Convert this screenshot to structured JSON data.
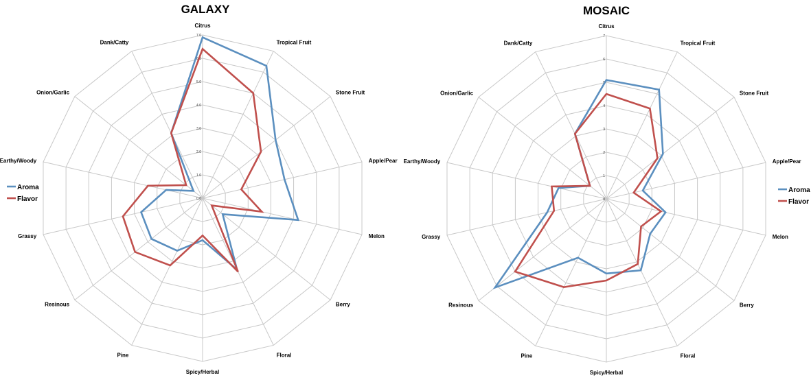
{
  "chart_data": [
    {
      "type": "radar",
      "title": "GALAXY",
      "categories": [
        "Citrus",
        "Tropical Fruit",
        "Stone Fruit",
        "Apple/Pear",
        "Melon",
        "Berry",
        "Floral",
        "Spicy/Herbal",
        "Pine",
        "Resinous",
        "Grassy",
        "Earthy/Woody",
        "Onion/Garlic",
        "Dank/Catty"
      ],
      "r_range": [
        0,
        7
      ],
      "tick_labels": [
        "0.0",
        "1.0",
        "2.0",
        "3.0",
        "4.0",
        "5.0",
        "6.0",
        "7.0"
      ],
      "series": [
        {
          "name": "Aroma",
          "color": "#5b8fbf",
          "values": [
            6.9,
            6.3,
            4.0,
            3.6,
            4.2,
            1.1,
            3.4,
            1.8,
            2.5,
            2.8,
            2.7,
            1.6,
            0.5,
            3.1
          ]
        },
        {
          "name": "Flavor",
          "color": "#c0504d",
          "values": [
            6.4,
            5.0,
            3.2,
            1.7,
            2.6,
            0.5,
            3.5,
            1.6,
            3.2,
            3.7,
            3.5,
            2.4,
            0.9,
            3.1
          ]
        }
      ],
      "legend": [
        "Aroma",
        "Flavor"
      ],
      "legend_position": "left"
    },
    {
      "type": "radar",
      "title": "MOSAIC",
      "categories": [
        "Citrus",
        "Tropical Fruit",
        "Stone Fruit",
        "Apple/Pear",
        "Melon",
        "Berry",
        "Floral",
        "Spicy/Herbal",
        "Pine",
        "Resinous",
        "Grassy",
        "Earthy/Woody",
        "Onion/Garlic",
        "Dank/Catty"
      ],
      "r_range": [
        0,
        7
      ],
      "tick_labels": [
        "0",
        "1",
        "2",
        "3",
        "4",
        "5",
        "6",
        "7"
      ],
      "series": [
        {
          "name": "Aroma",
          "color": "#5b8fbf",
          "values": [
            5.1,
            5.2,
            3.1,
            1.6,
            2.6,
            2.4,
            3.4,
            3.2,
            2.8,
            6.1,
            2.6,
            2.1,
            0.9,
            3.1
          ]
        },
        {
          "name": "Flavor",
          "color": "#c0504d",
          "values": [
            4.5,
            4.3,
            2.8,
            1.2,
            2.4,
            1.9,
            3.1,
            3.5,
            4.2,
            5.0,
            2.3,
            2.4,
            0.9,
            3.1
          ]
        }
      ],
      "legend": [
        "Aroma",
        "Flavor"
      ],
      "legend_position": "right"
    }
  ]
}
